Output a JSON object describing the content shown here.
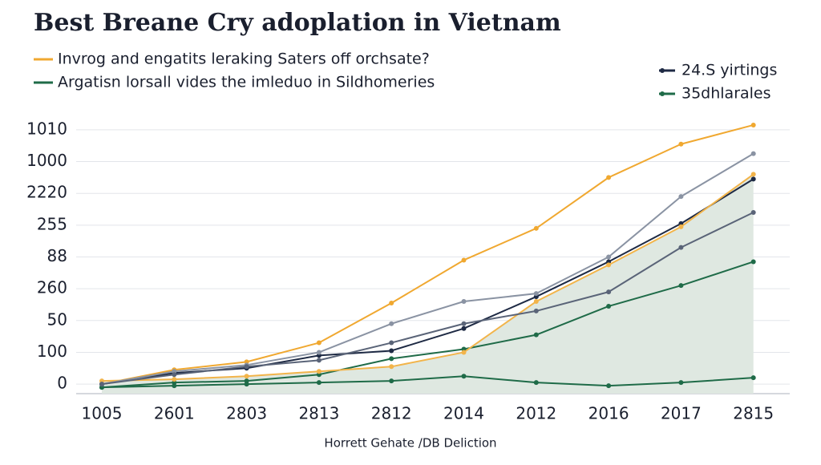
{
  "chart_data": {
    "type": "line",
    "title": "Best Breane Cry adoplation in Vietnam",
    "footer": "Horrett Gehate /DB Deliction",
    "categories": [
      "1005",
      "2601",
      "2803",
      "2813",
      "2812",
      "2014",
      "2012",
      "2016",
      "2017",
      "2815"
    ],
    "ylim": [
      -0.3,
      8.3
    ],
    "yticks": [
      {
        "value": 0,
        "label": "0"
      },
      {
        "value": 1,
        "label": "100"
      },
      {
        "value": 2,
        "label": "50"
      },
      {
        "value": 3,
        "label": "260"
      },
      {
        "value": 4,
        "label": "88"
      },
      {
        "value": 5,
        "label": "255"
      },
      {
        "value": 6,
        "label": "2220"
      },
      {
        "value": 7,
        "label": "1000"
      },
      {
        "value": 8,
        "label": "1010"
      }
    ],
    "grid": true,
    "series": [
      {
        "name": "Invrog and engatits leraking Saters off orchsate?",
        "color": "#f0a830",
        "values": [
          0,
          0.45,
          0.7,
          1.3,
          2.55,
          3.9,
          4.9,
          6.5,
          7.55,
          8.15
        ]
      },
      {
        "name": "Argatisn lorsall vides the imleduo in Sildhomeries",
        "color": "#1f6b48",
        "values": [
          -0.1,
          0.05,
          0.1,
          0.3,
          0.8,
          1.1,
          1.55,
          2.45,
          3.1,
          3.85
        ]
      },
      {
        "name": "24.S yirtings",
        "color": "#1e2a44",
        "values": [
          0,
          0.35,
          0.5,
          0.9,
          1.05,
          1.75,
          2.75,
          3.85,
          5.05,
          6.45
        ]
      },
      {
        "name": "35dhlarales",
        "color": "#1f6b48",
        "values": [
          -0.1,
          -0.05,
          0,
          0.05,
          0.1,
          0.25,
          0.05,
          -0.05,
          0.05,
          0.2
        ]
      },
      {
        "color": "#f2b44a",
        "fill": "#dfe8e1",
        "values": [
          0.1,
          0.15,
          0.25,
          0.4,
          0.55,
          1.0,
          2.6,
          3.75,
          4.95,
          6.6
        ]
      },
      {
        "color": "#8a93a3",
        "values": [
          0,
          0.4,
          0.6,
          1.0,
          1.9,
          2.6,
          2.85,
          4.0,
          5.9,
          7.25
        ]
      },
      {
        "color": "#5a6478",
        "values": [
          0,
          0.3,
          0.55,
          0.75,
          1.3,
          1.9,
          2.3,
          2.9,
          4.3,
          5.4
        ]
      }
    ]
  }
}
